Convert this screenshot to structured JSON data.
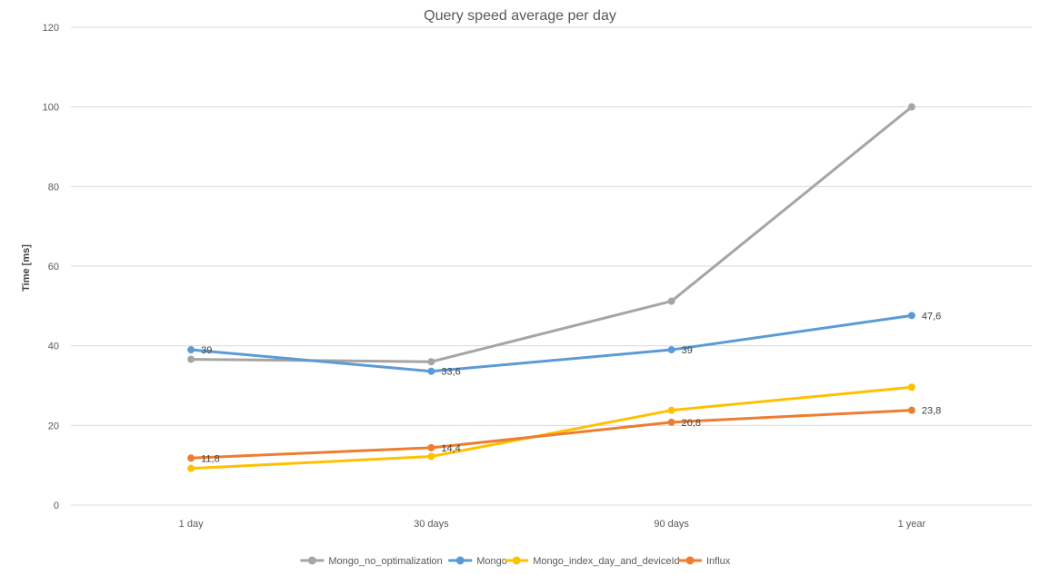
{
  "chart_data": {
    "type": "line",
    "title": "Query speed average per day",
    "xlabel": "",
    "ylabel": "Time [ms]",
    "categories": [
      "1 day",
      "30 days",
      "90 days",
      "1 year"
    ],
    "ylim": [
      0,
      120
    ],
    "yticks": [
      0,
      20,
      40,
      60,
      80,
      100,
      120
    ],
    "grid": true,
    "legend_position": "bottom",
    "series": [
      {
        "name": "Mongo_no_optimalization",
        "color": "#a5a5a5",
        "values": [
          36.6,
          36,
          51.2,
          100
        ],
        "labels": [
          "",
          "",
          "",
          ""
        ]
      },
      {
        "name": "Mongo",
        "color": "#5b9bd5",
        "values": [
          39,
          33.6,
          39,
          47.6
        ],
        "labels": [
          "39",
          "33,6",
          "39",
          "47,6"
        ]
      },
      {
        "name": "Mongo_index_day_and_deviceId",
        "color": "#ffc000",
        "values": [
          9.2,
          12.2,
          23.8,
          29.6
        ],
        "labels": [
          "",
          "",
          "",
          ""
        ]
      },
      {
        "name": "Influx",
        "color": "#ed7d31",
        "values": [
          11.8,
          14.4,
          20.8,
          23.8
        ],
        "labels": [
          "11,8",
          "14,4",
          "20,8",
          "23,8"
        ]
      }
    ]
  }
}
